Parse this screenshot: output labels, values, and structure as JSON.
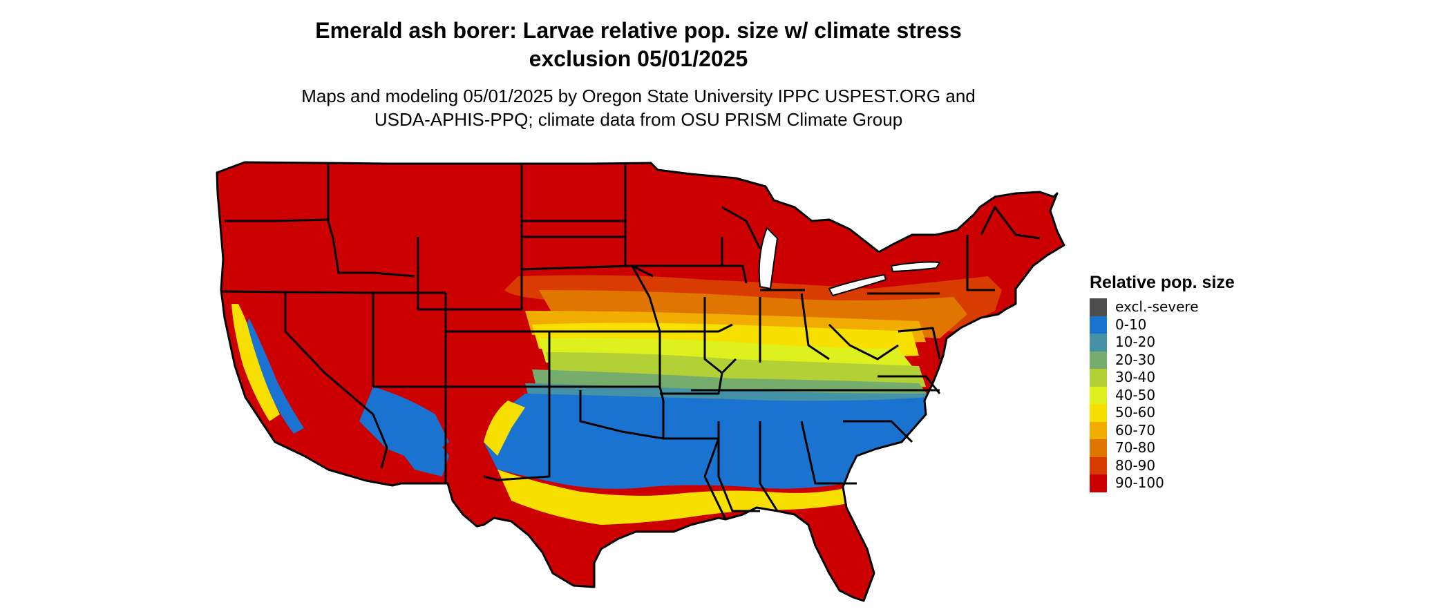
{
  "title": {
    "line1": "Emerald ash borer: Larvae relative pop. size w/ climate stress",
    "line2": "exclusion 05/01/2025"
  },
  "subtitle": {
    "line1": "Maps and modeling 05/01/2025 by Oregon State University IPPC USPEST.ORG and",
    "line2": "USDA-APHIS-PPQ; climate data from OSU PRISM Climate Group"
  },
  "legend": {
    "title": "Relative pop. size",
    "items": [
      {
        "label": "excl.-severe",
        "color": "#4d4d4d"
      },
      {
        "label": "0-10",
        "color": "#1a72d1"
      },
      {
        "label": "10-20",
        "color": "#4591a6"
      },
      {
        "label": "20-30",
        "color": "#76ad6c"
      },
      {
        "label": "30-40",
        "color": "#b3d137"
      },
      {
        "label": "40-50",
        "color": "#def01d"
      },
      {
        "label": "50-60",
        "color": "#f7df00"
      },
      {
        "label": "60-70",
        "color": "#f0ac00"
      },
      {
        "label": "70-80",
        "color": "#e07600"
      },
      {
        "label": "80-90",
        "color": "#d93c00"
      },
      {
        "label": "90-100",
        "color": "#cc0000"
      }
    ]
  }
}
